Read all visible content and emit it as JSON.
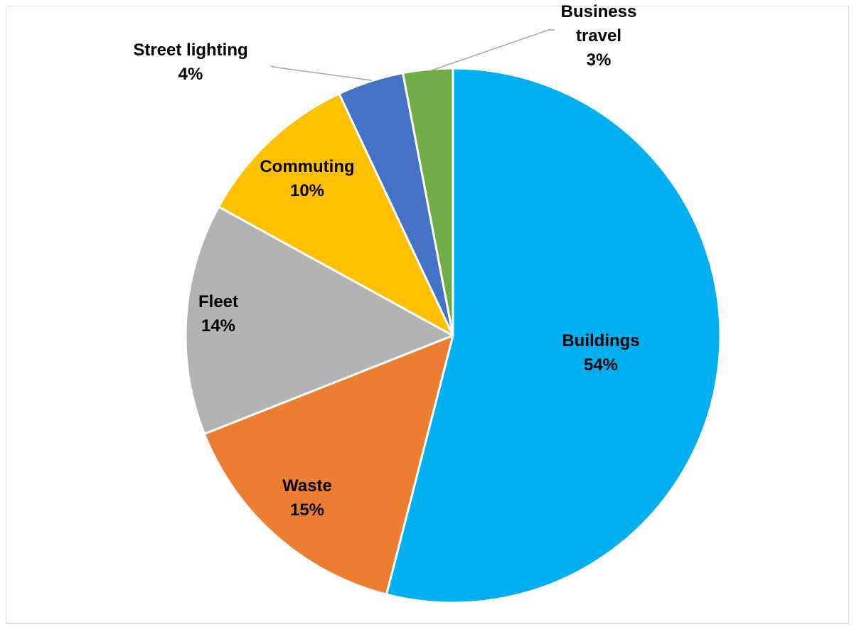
{
  "chart_data": {
    "type": "pie",
    "start_angle_deg": 0,
    "direction": "clockwise",
    "slices": [
      {
        "label": "Buildings",
        "value": 54,
        "value_label": "54%",
        "color": "#00B0F0"
      },
      {
        "label": "Waste",
        "value": 15,
        "value_label": "15%",
        "color": "#ED7D31"
      },
      {
        "label": "Fleet",
        "value": 14,
        "value_label": "14%",
        "color": "#B3B3B3"
      },
      {
        "label": "Commuting",
        "value": 10,
        "value_label": "10%",
        "color": "#FFC000"
      },
      {
        "label": "Street lighting",
        "value": 4,
        "value_label": "4%",
        "color": "#4472C4"
      },
      {
        "label": "Business travel",
        "label_lines": [
          "Business",
          "travel"
        ],
        "value": 3,
        "value_label": "3%",
        "color": "#70AD47"
      }
    ],
    "slice_border_color": "#ffffff",
    "leader_line_color": "#A6A6A6"
  }
}
